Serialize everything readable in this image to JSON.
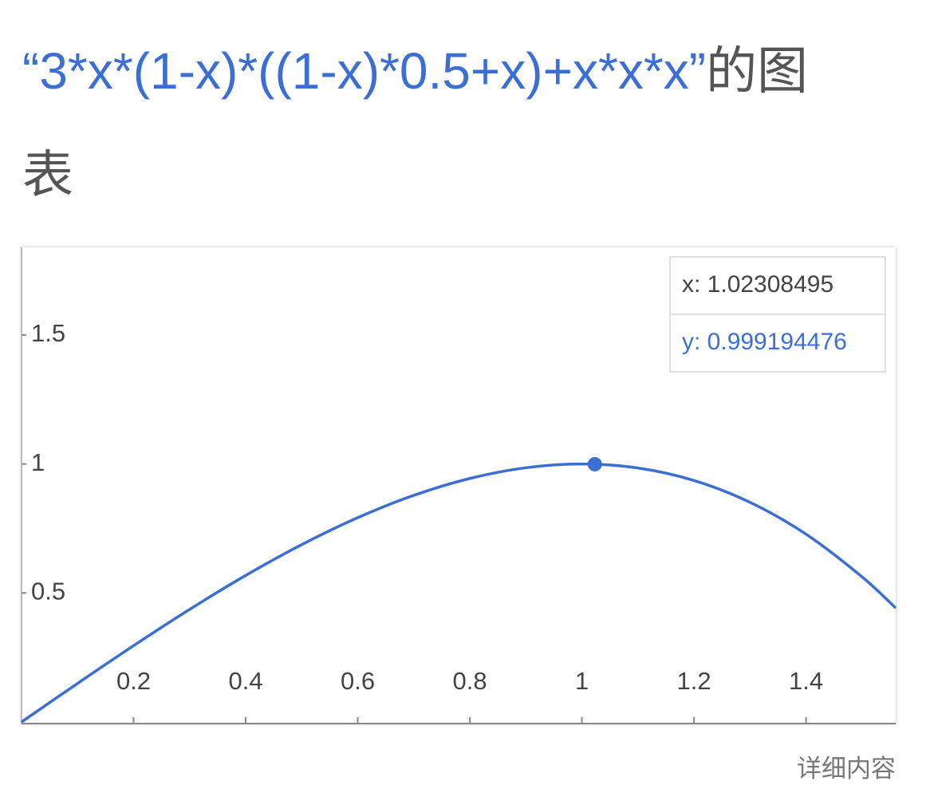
{
  "chart_data": {
    "type": "line",
    "title": "“3*x*(1-x)*((1-x)*0.5+x)+x*x*x”",
    "title_suffix": "的图表",
    "x": [
      0,
      0.1,
      0.2,
      0.3,
      0.4,
      0.5,
      0.6,
      0.7,
      0.8,
      0.9,
      1.0,
      1.1,
      1.2,
      1.3,
      1.4,
      1.5,
      1.56
    ],
    "series": [
      {
        "color": "#3b6fd4",
        "values": [
          0,
          0.1495,
          0.296,
          0.4365,
          0.568,
          0.6875,
          0.792,
          0.8785,
          0.944,
          0.9855,
          1.0,
          0.9845,
          0.936,
          0.8515,
          0.728,
          0.5625,
          0.441792
        ]
      }
    ],
    "xlim": [
      0,
      1.56
    ],
    "ylim": [
      0,
      1.84
    ],
    "xticks": [
      0.2,
      0.4,
      0.6,
      0.8,
      1,
      1.2,
      1.4
    ],
    "yticks": [
      0.5,
      1,
      1.5
    ],
    "highlight": {
      "x": 1.02308495,
      "y": 0.999194476,
      "x_label": "x: 1.02308495",
      "y_label": "y: 0.999194476"
    },
    "footer": "详细内容"
  }
}
